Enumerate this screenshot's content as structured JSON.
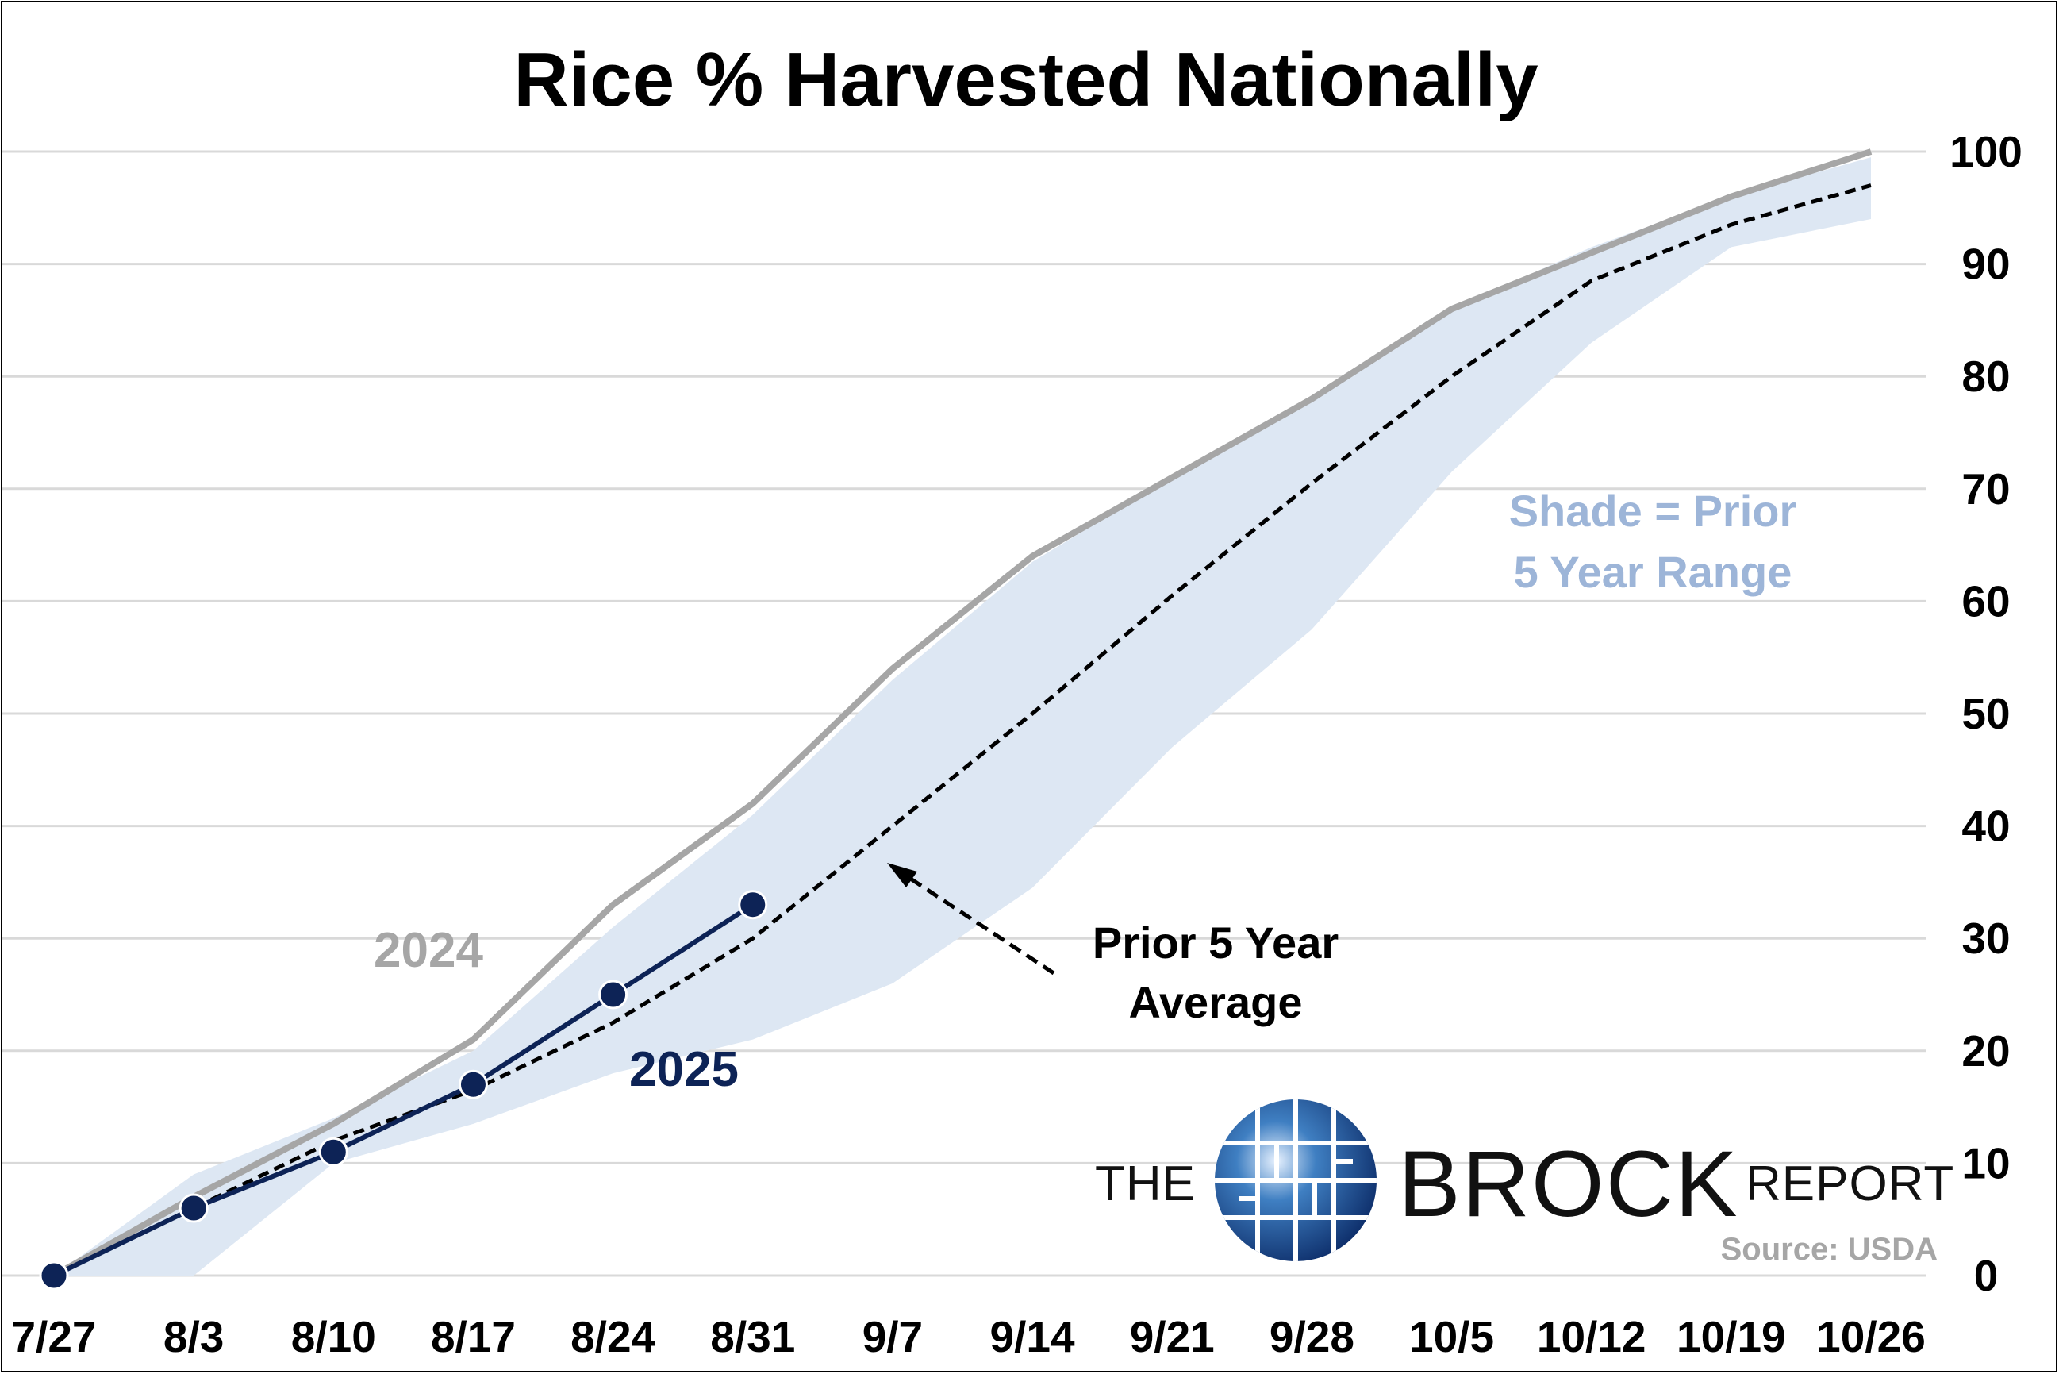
{
  "chart_data": {
    "type": "line",
    "title": "Rice % Harvested Nationally",
    "categories": [
      "7/27",
      "8/3",
      "8/10",
      "8/17",
      "8/24",
      "8/31",
      "9/7",
      "9/14",
      "9/21",
      "9/28",
      "10/5",
      "10/12",
      "10/19",
      "10/26"
    ],
    "ylim": [
      0,
      100
    ],
    "yticks": [
      0,
      10,
      20,
      30,
      40,
      50,
      60,
      70,
      80,
      90,
      100
    ],
    "y_axis_position": "right",
    "grid": true,
    "series": [
      {
        "name": "2024",
        "color": "#a6a6a6",
        "values": [
          0,
          7,
          13.5,
          21,
          33,
          42,
          54,
          64,
          71,
          78,
          86,
          91,
          96,
          100
        ]
      },
      {
        "name": "2025",
        "color": "#0d2356",
        "values": [
          0,
          6,
          11,
          17,
          25,
          33,
          null,
          null,
          null,
          null,
          null,
          null,
          null,
          null
        ]
      },
      {
        "name": "Prior 5 Year Average",
        "color": "#000000",
        "dashed": true,
        "values": [
          0,
          6,
          12,
          16.5,
          22.5,
          30,
          40,
          50,
          60.5,
          70.5,
          80,
          88.5,
          93.5,
          97
        ]
      }
    ],
    "range_band": {
      "name": "Prior 5 Year Range",
      "color": "#dde7f3",
      "low": [
        0,
        0,
        10,
        13.5,
        18,
        21,
        26,
        34.5,
        47,
        57.5,
        71.5,
        83,
        91.5,
        94
      ],
      "high": [
        0,
        9,
        14,
        20,
        31,
        41,
        53,
        63.5,
        71,
        78,
        86,
        91.5,
        96,
        99.5
      ]
    },
    "annotations": {
      "label_2024": "2024",
      "label_2025": "2025",
      "shade_line1": "Shade = Prior",
      "shade_line2": "5 Year Range",
      "avg_line1": "Prior 5 Year",
      "avg_line2": "Average"
    }
  },
  "logo": {
    "the": "THE",
    "brock": "BROCK",
    "report": "REPORT",
    "icon": "globe-icon"
  },
  "source": "Source: USDA"
}
